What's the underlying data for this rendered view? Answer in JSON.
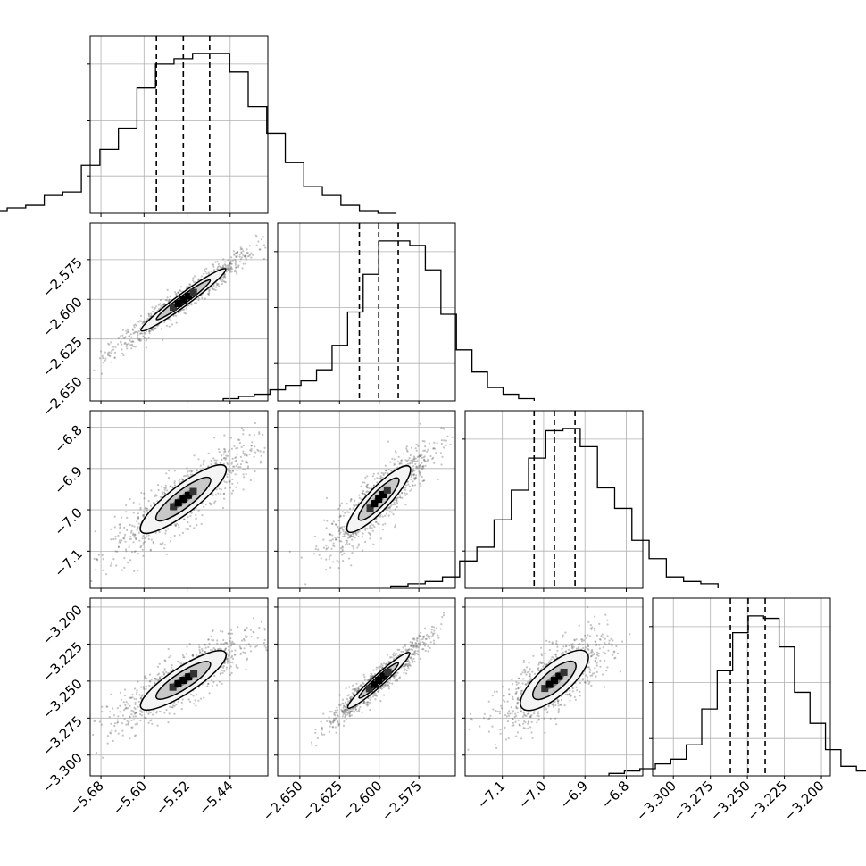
{
  "chart_data": {
    "type": "corner",
    "title": "",
    "parameters": [
      {
        "range": [
          -5.7,
          -5.37
        ],
        "ticks": [
          -5.68,
          -5.6,
          -5.52,
          -5.44
        ],
        "tick_labels": [
          "−5.68",
          "−5.60",
          "−5.52",
          "−5.44"
        ],
        "quantiles": [
          -5.577,
          -5.527,
          -5.478
        ]
      },
      {
        "range": [
          -2.664,
          -2.552
        ],
        "ticks": [
          -2.65,
          -2.625,
          -2.6,
          -2.575
        ],
        "tick_labels": [
          "−2.650",
          "−2.625",
          "−2.600",
          "−2.575"
        ],
        "quantiles": [
          -2.6125,
          -2.6003,
          -2.588
        ]
      },
      {
        "range": [
          -7.19,
          -6.76
        ],
        "ticks": [
          -7.1,
          -7.0,
          -6.9,
          -6.8
        ],
        "tick_labels": [
          "−7.1",
          "−7.0",
          "−6.9",
          "−6.8"
        ],
        "quantiles": [
          -7.023,
          -6.974,
          -6.924
        ]
      },
      {
        "range": [
          -3.314,
          -3.194
        ],
        "ticks": [
          -3.3,
          -3.275,
          -3.25,
          -3.225,
          -3.2
        ],
        "tick_labels": [
          "−3.300",
          "−3.275",
          "−3.250",
          "−3.225",
          "−3.200"
        ],
        "quantiles": [
          -3.2615,
          -3.2495,
          -3.238
        ]
      }
    ],
    "histograms": [
      {
        "param": 0,
        "counts": [
          1,
          1,
          2,
          3,
          7,
          8,
          18,
          24,
          32,
          47,
          56,
          58,
          60,
          60,
          53,
          40,
          30,
          19,
          10,
          7,
          3,
          1,
          0
        ]
      },
      {
        "param": 1,
        "counts": [
          1,
          2,
          3,
          5,
          7,
          9,
          14,
          25,
          40,
          57,
          72,
          72,
          70,
          59,
          39,
          23,
          13,
          6,
          3,
          1
        ]
      },
      {
        "param": 2,
        "counts": [
          1,
          2,
          3,
          5,
          12,
          18,
          30,
          43,
          57,
          69,
          70,
          62,
          44,
          35,
          21,
          13,
          5,
          3,
          2
        ]
      },
      {
        "param": 3,
        "counts": [
          1,
          2,
          3,
          5,
          7,
          13,
          28,
          44,
          60,
          67,
          66,
          54,
          35,
          22,
          11,
          4,
          2,
          1
        ]
      }
    ],
    "pairs": [
      {
        "x_param": 0,
        "y_param": 1,
        "correlation": 0.97
      },
      {
        "x_param": 0,
        "y_param": 2,
        "correlation": 0.86
      },
      {
        "x_param": 1,
        "y_param": 2,
        "correlation": 0.87
      },
      {
        "x_param": 0,
        "y_param": 3,
        "correlation": 0.86
      },
      {
        "x_param": 1,
        "y_param": 3,
        "correlation": 0.96
      },
      {
        "x_param": 2,
        "y_param": 3,
        "correlation": 0.74
      }
    ],
    "grid": true,
    "contour_levels": 2,
    "quantile_lines": "dashed"
  }
}
